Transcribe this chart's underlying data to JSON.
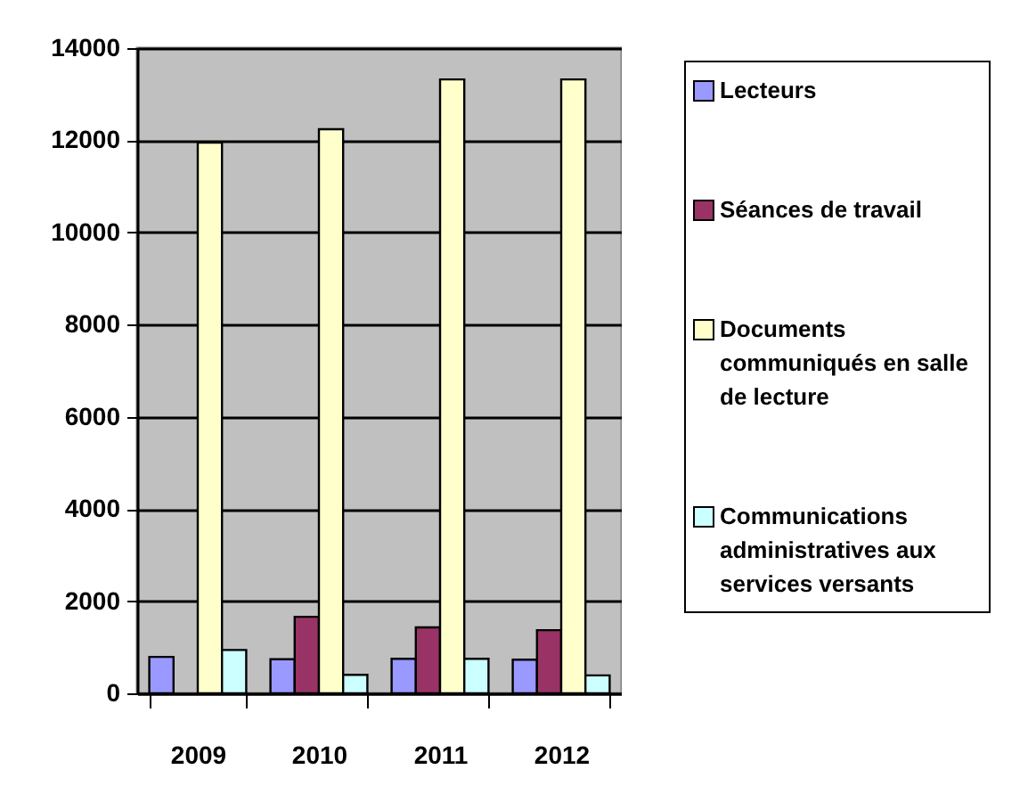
{
  "chart_data": {
    "type": "bar",
    "categories": [
      "2009",
      "2010",
      "2011",
      "2012"
    ],
    "series": [
      {
        "name": "Lecteurs",
        "color": "#9999ff",
        "values": [
          790,
          740,
          750,
          730
        ]
      },
      {
        "name": "Séances de travail",
        "color": "#993366",
        "values": [
          null,
          1660,
          1430,
          1370
        ]
      },
      {
        "name": "Documents communiqués en salle de lecture",
        "color": "#ffffcc",
        "values": [
          11950,
          12240,
          13320,
          13320
        ]
      },
      {
        "name": "Communications administratives aux services versants",
        "color": "#ccffff",
        "values": [
          940,
          400,
          750,
          390
        ]
      }
    ],
    "ylim": [
      0,
      14000
    ],
    "yticks": [
      0,
      2000,
      4000,
      6000,
      8000,
      10000,
      12000,
      14000
    ],
    "grid": "y",
    "legend": "right"
  }
}
